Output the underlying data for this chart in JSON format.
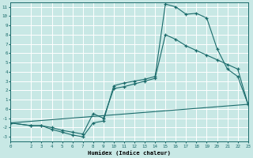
{
  "xlabel": "Humidex (Indice chaleur)",
  "bg_color": "#c8e8e5",
  "grid_color": "#ffffff",
  "line_color": "#1a6b6b",
  "xlim": [
    0,
    23
  ],
  "ylim": [
    -3.5,
    11.5
  ],
  "xticks": [
    0,
    2,
    3,
    4,
    5,
    6,
    7,
    8,
    9,
    10,
    11,
    12,
    13,
    14,
    15,
    16,
    17,
    18,
    19,
    20,
    21,
    22,
    23
  ],
  "yticks": [
    -3,
    -2,
    -1,
    0,
    1,
    2,
    3,
    4,
    5,
    6,
    7,
    8,
    9,
    10,
    11
  ],
  "curve1_x": [
    0,
    2,
    3,
    4,
    5,
    6,
    7,
    8,
    9,
    10,
    11,
    12,
    13,
    14,
    15,
    16,
    17,
    18,
    19,
    20,
    21,
    22,
    23
  ],
  "curve1_y": [
    -1.5,
    -1.8,
    -1.8,
    -2.2,
    -2.5,
    -2.8,
    -3.0,
    -1.5,
    -1.3,
    2.5,
    2.8,
    3.0,
    3.2,
    3.5,
    11.3,
    11.0,
    10.2,
    10.3,
    9.8,
    6.5,
    4.3,
    3.5,
    0.5
  ],
  "curve2_x": [
    0,
    2,
    3,
    4,
    5,
    6,
    7,
    8,
    9,
    10,
    11,
    12,
    13,
    14,
    15,
    16,
    17,
    18,
    19,
    20,
    21,
    22,
    23
  ],
  "curve2_y": [
    -1.5,
    -1.8,
    -1.8,
    -2.0,
    -2.3,
    -2.5,
    -2.7,
    -0.5,
    -1.0,
    2.2,
    2.4,
    2.7,
    3.0,
    3.3,
    8.0,
    7.5,
    6.8,
    6.3,
    5.8,
    5.3,
    4.8,
    4.3,
    0.5
  ],
  "curve3_x": [
    0,
    23
  ],
  "curve3_y": [
    -1.5,
    0.5
  ]
}
